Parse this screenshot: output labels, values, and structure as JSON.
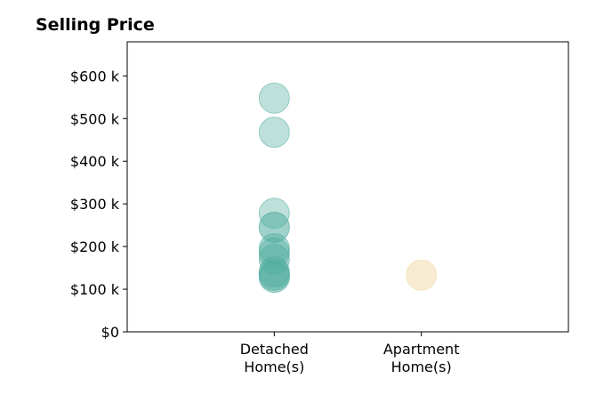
{
  "chart_data": {
    "type": "scatter",
    "title": "Selling Price",
    "xlabel": "",
    "ylabel": "",
    "categories": [
      "Detached\nHome(s)",
      "Apartment\nHome(s)"
    ],
    "xlim": [
      0,
      3
    ],
    "ylim": [
      0,
      680000
    ],
    "yticks": [
      {
        "value": 0,
        "label": "$0"
      },
      {
        "value": 100000,
        "label": "$100 k"
      },
      {
        "value": 200000,
        "label": "$200 k"
      },
      {
        "value": 300000,
        "label": "$300 k"
      },
      {
        "value": 400000,
        "label": "$400 k"
      },
      {
        "value": 500000,
        "label": "$500 k"
      },
      {
        "value": 600000,
        "label": "$600 k"
      }
    ],
    "grid": false,
    "series": [
      {
        "category_index": 0,
        "color": "#52ad9f",
        "points": [
          {
            "y": 548000,
            "alpha": 0.38
          },
          {
            "y": 468000,
            "alpha": 0.38
          },
          {
            "y": 278000,
            "alpha": 0.38
          },
          {
            "y": 245000,
            "alpha": 0.55
          },
          {
            "y": 195000,
            "alpha": 0.45
          },
          {
            "y": 185000,
            "alpha": 0.45
          },
          {
            "y": 170000,
            "alpha": 0.45
          },
          {
            "y": 140000,
            "alpha": 0.5
          },
          {
            "y": 133000,
            "alpha": 0.5
          },
          {
            "y": 128000,
            "alpha": 0.5
          }
        ]
      },
      {
        "category_index": 1,
        "color": "#f1ddad",
        "points": [
          {
            "y": 133000,
            "alpha": 0.55
          }
        ]
      }
    ]
  }
}
